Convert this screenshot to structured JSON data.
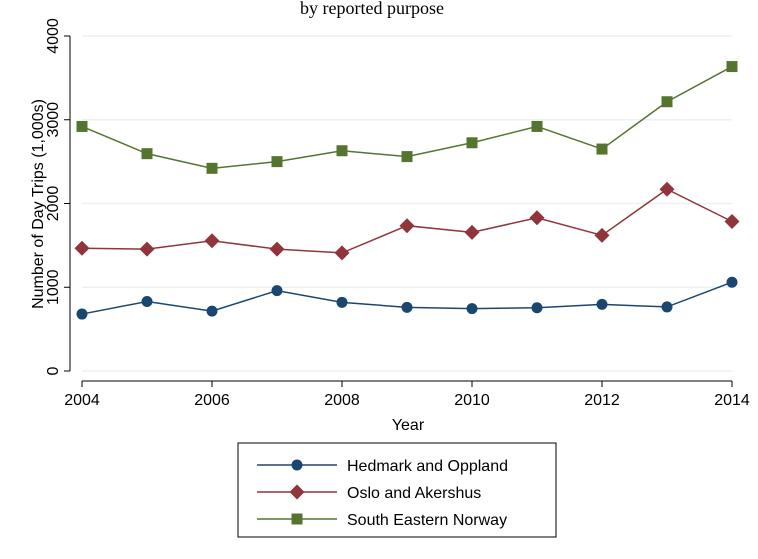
{
  "chart_data": {
    "type": "line",
    "title": "",
    "top_text": "by reported purpose",
    "xlabel": "Year",
    "ylabel": "Number of Day Trips (1,000s)",
    "x": [
      2004,
      2005,
      2006,
      2007,
      2008,
      2009,
      2010,
      2011,
      2012,
      2013,
      2014
    ],
    "xticks": [
      2004,
      2006,
      2008,
      2010,
      2012,
      2014
    ],
    "yticks": [
      0,
      1000,
      2000,
      3000,
      4000
    ],
    "xlim": [
      2004,
      2014
    ],
    "ylim": [
      0,
      4000
    ],
    "grid": true,
    "legend_position": "bottom",
    "series": [
      {
        "name": "Hedmark and Oppland",
        "color": "#1a476f",
        "marker": "circle",
        "values": [
          680,
          830,
          715,
          960,
          820,
          760,
          745,
          755,
          795,
          765,
          1060
        ]
      },
      {
        "name": "Oslo and Akershus",
        "color": "#90353b",
        "marker": "diamond",
        "values": [
          1465,
          1455,
          1555,
          1455,
          1410,
          1735,
          1655,
          1830,
          1620,
          2170,
          1785
        ]
      },
      {
        "name": "South Eastern Norway",
        "color": "#55752f",
        "marker": "square",
        "values": [
          2920,
          2595,
          2420,
          2500,
          2630,
          2560,
          2725,
          2920,
          2650,
          3215,
          3635
        ]
      }
    ]
  }
}
